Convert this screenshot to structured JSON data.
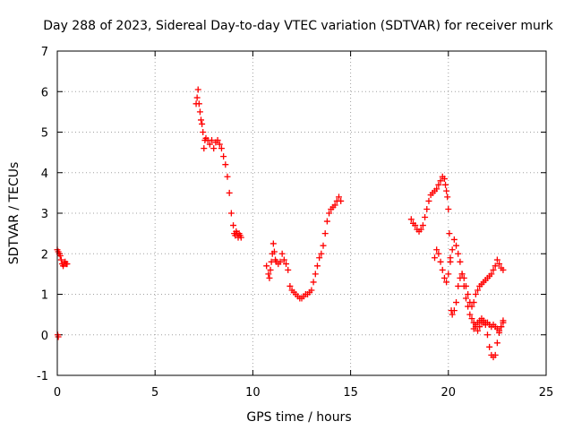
{
  "chart_data": {
    "type": "scatter",
    "title": "Day 288 of 2023, Sidereal Day-to-day VTEC variation (SDTVAR) for receiver murk",
    "xlabel": "GPS time / hours",
    "ylabel": "SDTVAR / TECUs",
    "xlim": [
      0,
      25
    ],
    "ylim": [
      -1,
      7
    ],
    "xticks": [
      "0",
      "5",
      "10",
      "15",
      "20",
      "25"
    ],
    "yticks": [
      "-1",
      "0",
      "1",
      "2",
      "3",
      "4",
      "5",
      "6",
      "7"
    ],
    "grid": true,
    "marker": "+",
    "color": "#ff0000",
    "segments": [
      {
        "x": [
          0.0,
          0.05,
          0.1,
          0.15,
          0.2,
          0.25,
          0.3,
          0.35,
          0.4,
          0.45,
          0.5
        ],
        "y": [
          2.1,
          2.05,
          2.0,
          1.95,
          1.85,
          1.75,
          1.7,
          1.75,
          1.8,
          1.75,
          1.75
        ]
      },
      {
        "x": [
          0.02,
          0.05
        ],
        "y": [
          0.0,
          -0.05
        ]
      },
      {
        "x": [
          7.1,
          7.15,
          7.2,
          7.25,
          7.3,
          7.35,
          7.4,
          7.45,
          7.5,
          7.55,
          7.6,
          7.7,
          7.8,
          7.9,
          8.0,
          8.1,
          8.2,
          8.3,
          8.4,
          8.5,
          8.6,
          8.7,
          8.8,
          8.9,
          9.0,
          9.05,
          9.1,
          9.15,
          9.2,
          9.25,
          9.3,
          9.35,
          9.4
        ],
        "y": [
          5.7,
          5.85,
          6.05,
          5.7,
          5.5,
          5.3,
          5.2,
          5.0,
          4.6,
          4.8,
          4.85,
          4.8,
          4.7,
          4.8,
          4.6,
          4.75,
          4.8,
          4.7,
          4.6,
          4.4,
          4.2,
          3.9,
          3.5,
          3.0,
          2.7,
          2.5,
          2.45,
          2.55,
          2.5,
          2.4,
          2.5,
          2.45,
          2.4
        ]
      },
      {
        "x": [
          10.7,
          10.8,
          10.85,
          10.9,
          10.95,
          11.0,
          11.05,
          11.1,
          11.15,
          11.2,
          11.3,
          11.4,
          11.5,
          11.6,
          11.7,
          11.8,
          11.9,
          12.0,
          12.1,
          12.2,
          12.3,
          12.4,
          12.5,
          12.6,
          12.7,
          12.8,
          12.9,
          13.0,
          13.1,
          13.2,
          13.3,
          13.4,
          13.5,
          13.6,
          13.7,
          13.8,
          13.9,
          14.0,
          14.1,
          14.2,
          14.3,
          14.4,
          14.5
        ],
        "y": [
          1.7,
          1.5,
          1.4,
          1.6,
          1.8,
          2.0,
          2.25,
          2.05,
          1.85,
          1.8,
          1.75,
          1.8,
          2.0,
          1.85,
          1.75,
          1.6,
          1.2,
          1.1,
          1.05,
          1.0,
          0.95,
          0.9,
          0.9,
          0.95,
          1.0,
          1.0,
          1.05,
          1.1,
          1.3,
          1.5,
          1.7,
          1.9,
          2.0,
          2.2,
          2.5,
          2.8,
          3.0,
          3.1,
          3.15,
          3.2,
          3.3,
          3.4,
          3.3
        ]
      },
      {
        "x": [
          18.1,
          18.2,
          18.3,
          18.4,
          18.5,
          18.6,
          18.7,
          18.8,
          18.9,
          19.0,
          19.1,
          19.2,
          19.3,
          19.4,
          19.5,
          19.6,
          19.7,
          19.8,
          19.85,
          19.9,
          19.95,
          20.0,
          20.05,
          20.1,
          20.15,
          20.2,
          20.3,
          20.4,
          20.5,
          20.6,
          20.7,
          20.8,
          20.9,
          21.0,
          21.1,
          21.2,
          21.3,
          21.4,
          21.5,
          21.6,
          21.7,
          21.8,
          21.9,
          22.0,
          22.1,
          22.2,
          22.3,
          22.4,
          22.5,
          22.6,
          22.7,
          22.8
        ],
        "y": [
          2.85,
          2.75,
          2.7,
          2.6,
          2.55,
          2.6,
          2.7,
          2.9,
          3.1,
          3.3,
          3.45,
          3.5,
          3.55,
          3.6,
          3.7,
          3.8,
          3.9,
          3.85,
          3.7,
          3.55,
          3.4,
          3.1,
          2.5,
          1.8,
          0.6,
          0.5,
          0.6,
          0.8,
          1.2,
          1.4,
          1.5,
          1.4,
          1.2,
          1.0,
          0.8,
          0.7,
          0.8,
          1.0,
          1.1,
          1.2,
          1.25,
          1.3,
          1.35,
          1.4,
          1.45,
          1.5,
          1.6,
          1.7,
          1.85,
          1.75,
          1.65,
          1.6
        ]
      },
      {
        "x": [
          19.3,
          19.4,
          19.5,
          19.6,
          19.7,
          19.8,
          19.9,
          20.0,
          20.1,
          20.2,
          20.3,
          20.4,
          20.5,
          20.6,
          20.7,
          20.8,
          20.9,
          21.0,
          21.1,
          21.2,
          21.3,
          21.4,
          21.5,
          21.6,
          21.7,
          21.8,
          21.9,
          22.0,
          22.1,
          22.2,
          22.3,
          22.4,
          22.5,
          22.6,
          22.7,
          22.8
        ],
        "y": [
          1.9,
          2.1,
          2.0,
          1.8,
          1.6,
          1.4,
          1.3,
          1.5,
          1.9,
          2.1,
          2.35,
          2.2,
          2.0,
          1.8,
          1.5,
          1.2,
          0.9,
          0.7,
          0.5,
          0.4,
          0.3,
          0.2,
          0.1,
          0.2,
          0.3,
          0.3,
          0.25,
          0.0,
          -0.3,
          -0.5,
          -0.55,
          -0.5,
          -0.2,
          0.05,
          0.2,
          0.35
        ]
      },
      {
        "x": [
          21.3,
          21.4,
          21.5,
          21.6,
          21.7,
          21.8,
          21.9,
          22.0,
          22.1,
          22.2,
          22.3,
          22.4,
          22.5,
          22.6,
          22.7,
          22.8
        ],
        "y": [
          0.15,
          0.25,
          0.3,
          0.35,
          0.4,
          0.35,
          0.3,
          0.3,
          0.25,
          0.2,
          0.25,
          0.2,
          0.15,
          0.1,
          0.2,
          0.3
        ]
      }
    ]
  }
}
